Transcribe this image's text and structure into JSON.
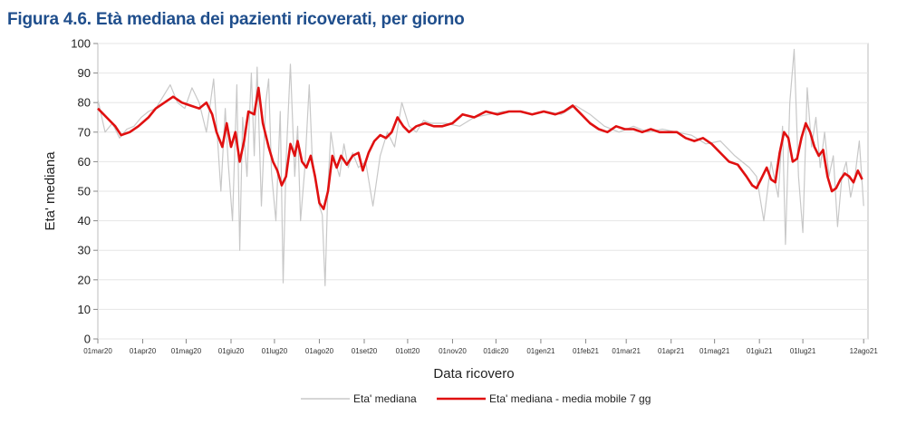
{
  "figure_title": "Figura 4.6. Età mediana dei pazienti ricoverati, per giorno",
  "chart_data": {
    "type": "line",
    "xlabel": "Data ricovero",
    "ylabel": "Eta' mediana",
    "ylim": [
      0,
      100
    ],
    "yticks": [
      0,
      10,
      20,
      30,
      40,
      50,
      60,
      70,
      80,
      90,
      100
    ],
    "grid": true,
    "legend_position": "bottom",
    "x_tick_labels": [
      "01mar20",
      "01apr20",
      "01mag20",
      "01giu20",
      "01lug20",
      "01ago20",
      "01set20",
      "01ott20",
      "01nov20",
      "01dic20",
      "01gen21",
      "01feb21",
      "01mar21",
      "01apr21",
      "01mag21",
      "01giu21",
      "01lug21",
      "12ago21"
    ],
    "x_tick_days": [
      0,
      31,
      61,
      92,
      122,
      153,
      184,
      214,
      245,
      275,
      306,
      337,
      365,
      396,
      426,
      457,
      487,
      529
    ],
    "series": [
      {
        "name": "Eta' mediana",
        "color": "#c8c8c8",
        "points": [
          [
            0,
            81
          ],
          [
            5,
            70
          ],
          [
            10,
            73
          ],
          [
            15,
            68
          ],
          [
            20,
            71
          ],
          [
            25,
            72
          ],
          [
            30,
            75
          ],
          [
            35,
            77
          ],
          [
            40,
            78
          ],
          [
            45,
            82
          ],
          [
            50,
            86
          ],
          [
            55,
            80
          ],
          [
            60,
            78
          ],
          [
            65,
            85
          ],
          [
            70,
            80
          ],
          [
            75,
            70
          ],
          [
            80,
            88
          ],
          [
            85,
            50
          ],
          [
            88,
            78
          ],
          [
            90,
            60
          ],
          [
            93,
            40
          ],
          [
            96,
            86
          ],
          [
            98,
            30
          ],
          [
            100,
            75
          ],
          [
            103,
            55
          ],
          [
            106,
            90
          ],
          [
            108,
            62
          ],
          [
            110,
            92
          ],
          [
            113,
            45
          ],
          [
            116,
            80
          ],
          [
            118,
            88
          ],
          [
            120,
            56
          ],
          [
            123,
            40
          ],
          [
            126,
            77
          ],
          [
            128,
            19
          ],
          [
            130,
            60
          ],
          [
            133,
            93
          ],
          [
            136,
            55
          ],
          [
            138,
            72
          ],
          [
            140,
            40
          ],
          [
            143,
            58
          ],
          [
            146,
            86
          ],
          [
            148,
            62
          ],
          [
            150,
            55
          ],
          [
            153,
            45
          ],
          [
            155,
            42
          ],
          [
            157,
            18
          ],
          [
            159,
            52
          ],
          [
            161,
            70
          ],
          [
            164,
            60
          ],
          [
            167,
            55
          ],
          [
            170,
            66
          ],
          [
            173,
            58
          ],
          [
            176,
            63
          ],
          [
            180,
            58
          ],
          [
            185,
            60
          ],
          [
            190,
            45
          ],
          [
            195,
            62
          ],
          [
            200,
            70
          ],
          [
            205,
            65
          ],
          [
            210,
            80
          ],
          [
            215,
            72
          ],
          [
            220,
            70
          ],
          [
            225,
            74
          ],
          [
            230,
            73
          ],
          [
            240,
            73
          ],
          [
            250,
            72
          ],
          [
            260,
            75
          ],
          [
            270,
            76
          ],
          [
            280,
            77
          ],
          [
            290,
            77
          ],
          [
            300,
            76
          ],
          [
            310,
            77
          ],
          [
            320,
            76
          ],
          [
            330,
            79
          ],
          [
            340,
            76
          ],
          [
            350,
            72
          ],
          [
            360,
            70
          ],
          [
            370,
            72
          ],
          [
            380,
            70
          ],
          [
            390,
            71
          ],
          [
            400,
            70
          ],
          [
            410,
            69
          ],
          [
            420,
            66
          ],
          [
            430,
            67
          ],
          [
            440,
            62
          ],
          [
            450,
            58
          ],
          [
            455,
            55
          ],
          [
            460,
            40
          ],
          [
            465,
            60
          ],
          [
            470,
            48
          ],
          [
            473,
            72
          ],
          [
            475,
            32
          ],
          [
            478,
            80
          ],
          [
            481,
            98
          ],
          [
            484,
            55
          ],
          [
            487,
            36
          ],
          [
            490,
            85
          ],
          [
            493,
            65
          ],
          [
            496,
            75
          ],
          [
            499,
            58
          ],
          [
            502,
            70
          ],
          [
            505,
            55
          ],
          [
            508,
            62
          ],
          [
            511,
            38
          ],
          [
            514,
            55
          ],
          [
            517,
            60
          ],
          [
            520,
            48
          ],
          [
            523,
            55
          ],
          [
            526,
            67
          ],
          [
            529,
            45
          ]
        ]
      },
      {
        "name": "Eta' mediana - media mobile 7 gg",
        "color": "#e01010",
        "points": [
          [
            0,
            78
          ],
          [
            6,
            75
          ],
          [
            12,
            72
          ],
          [
            16,
            69
          ],
          [
            22,
            70
          ],
          [
            28,
            72
          ],
          [
            35,
            75
          ],
          [
            40,
            78
          ],
          [
            46,
            80
          ],
          [
            52,
            82
          ],
          [
            58,
            80
          ],
          [
            64,
            79
          ],
          [
            70,
            78
          ],
          [
            75,
            80
          ],
          [
            79,
            76
          ],
          [
            82,
            70
          ],
          [
            86,
            65
          ],
          [
            89,
            73
          ],
          [
            92,
            65
          ],
          [
            95,
            70
          ],
          [
            98,
            60
          ],
          [
            101,
            67
          ],
          [
            104,
            77
          ],
          [
            108,
            76
          ],
          [
            111,
            85
          ],
          [
            114,
            73
          ],
          [
            118,
            65
          ],
          [
            121,
            60
          ],
          [
            124,
            57
          ],
          [
            127,
            52
          ],
          [
            130,
            55
          ],
          [
            133,
            66
          ],
          [
            136,
            62
          ],
          [
            138,
            67
          ],
          [
            141,
            60
          ],
          [
            144,
            58
          ],
          [
            147,
            62
          ],
          [
            150,
            55
          ],
          [
            153,
            46
          ],
          [
            156,
            44
          ],
          [
            159,
            50
          ],
          [
            162,
            62
          ],
          [
            165,
            58
          ],
          [
            168,
            62
          ],
          [
            172,
            59
          ],
          [
            176,
            62
          ],
          [
            180,
            63
          ],
          [
            183,
            57
          ],
          [
            187,
            63
          ],
          [
            191,
            67
          ],
          [
            195,
            69
          ],
          [
            199,
            68
          ],
          [
            203,
            70
          ],
          [
            207,
            75
          ],
          [
            211,
            72
          ],
          [
            215,
            70
          ],
          [
            220,
            72
          ],
          [
            226,
            73
          ],
          [
            232,
            72
          ],
          [
            238,
            72
          ],
          [
            245,
            73
          ],
          [
            252,
            76
          ],
          [
            260,
            75
          ],
          [
            268,
            77
          ],
          [
            276,
            76
          ],
          [
            284,
            77
          ],
          [
            292,
            77
          ],
          [
            300,
            76
          ],
          [
            308,
            77
          ],
          [
            316,
            76
          ],
          [
            322,
            77
          ],
          [
            328,
            79
          ],
          [
            334,
            76
          ],
          [
            340,
            73
          ],
          [
            346,
            71
          ],
          [
            352,
            70
          ],
          [
            358,
            72
          ],
          [
            364,
            71
          ],
          [
            370,
            71
          ],
          [
            376,
            70
          ],
          [
            382,
            71
          ],
          [
            388,
            70
          ],
          [
            394,
            70
          ],
          [
            400,
            70
          ],
          [
            406,
            68
          ],
          [
            412,
            67
          ],
          [
            418,
            68
          ],
          [
            424,
            66
          ],
          [
            430,
            63
          ],
          [
            436,
            60
          ],
          [
            442,
            59
          ],
          [
            448,
            55
          ],
          [
            452,
            52
          ],
          [
            455,
            51
          ],
          [
            458,
            54
          ],
          [
            462,
            58
          ],
          [
            465,
            54
          ],
          [
            468,
            53
          ],
          [
            471,
            63
          ],
          [
            474,
            70
          ],
          [
            477,
            68
          ],
          [
            480,
            60
          ],
          [
            483,
            61
          ],
          [
            486,
            68
          ],
          [
            489,
            73
          ],
          [
            492,
            70
          ],
          [
            495,
            65
          ],
          [
            498,
            62
          ],
          [
            501,
            64
          ],
          [
            504,
            55
          ],
          [
            507,
            50
          ],
          [
            510,
            51
          ],
          [
            513,
            54
          ],
          [
            516,
            56
          ],
          [
            519,
            55
          ],
          [
            522,
            53
          ],
          [
            525,
            57
          ],
          [
            528,
            54
          ]
        ]
      }
    ]
  }
}
